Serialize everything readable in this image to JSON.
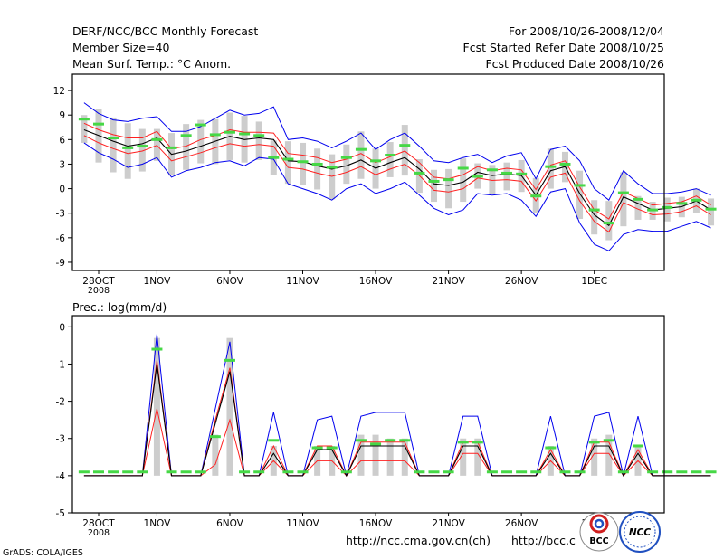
{
  "header": {
    "title": "DERF/NCC/BCC Monthly Forecast",
    "member_size": "Member Size=40",
    "variable": "Mean Surf. Temp.: °C Anom.",
    "period": "For 2008/10/26-2008/12/04",
    "refer_date": "Fcst Started Refer Date 2008/10/25",
    "produced_date": "Fcst Produced Date 2008/10/26"
  },
  "footer": {
    "grads": "GrADS: COLA/IGES",
    "url1": "http://ncc.cma.gov.cn(ch)",
    "url2": "http://bcc.c",
    "logo_bcc": "BCC",
    "logo_ncc": "NCC"
  },
  "colors": {
    "bar": "#cdcdcd",
    "median": "#000000",
    "sd": "#ff2020",
    "envelope": "#0000ee",
    "marker": "#46d846"
  },
  "chart_data": [
    {
      "type": "line",
      "title": "Mean Surf. Temp.: °C Anom.",
      "x_ticks": [
        "28OCT",
        "1NOV",
        "6NOV",
        "11NOV",
        "16NOV",
        "21NOV",
        "26NOV",
        "1DEC"
      ],
      "x_tick_days": [
        2,
        6,
        11,
        16,
        21,
        26,
        31,
        36
      ],
      "x_sublabel": "2008",
      "ylim": [
        -10,
        14
      ],
      "y_ticks": [
        12,
        9,
        6,
        3,
        0,
        -3,
        -6,
        -9
      ],
      "series": [
        {
          "name": "median",
          "values": [
            7.2,
            6.5,
            5.8,
            5.2,
            5.5,
            6.2,
            4.2,
            4.6,
            5.2,
            5.8,
            6.4,
            6.0,
            6.2,
            6.0,
            3.4,
            3.3,
            2.8,
            2.4,
            2.8,
            3.5,
            2.5,
            3.2,
            3.8,
            2.4,
            0.6,
            0.4,
            0.8,
            2.0,
            1.6,
            1.8,
            1.6,
            -0.8,
            2.2,
            2.7,
            -0.6,
            -3.2,
            -4.5,
            -1.0,
            -1.8,
            -2.6,
            -2.4,
            -2.2,
            -1.5,
            -2.6
          ]
        },
        {
          "name": "max",
          "values": [
            10.5,
            9.2,
            8.4,
            8.2,
            8.6,
            8.8,
            7.0,
            7.0,
            7.6,
            8.6,
            9.6,
            9.0,
            9.2,
            10.0,
            6.0,
            6.2,
            5.8,
            5.0,
            5.8,
            6.8,
            4.8,
            6.0,
            6.8,
            5.2,
            3.4,
            3.2,
            3.8,
            4.2,
            3.2,
            4.0,
            4.4,
            1.2,
            4.8,
            5.2,
            3.4,
            0.0,
            -1.4,
            2.2,
            0.6,
            -0.6,
            -0.6,
            -0.4,
            0.0,
            -0.8
          ]
        },
        {
          "name": "min",
          "values": [
            5.6,
            4.4,
            3.6,
            2.6,
            3.0,
            3.8,
            1.4,
            2.2,
            2.6,
            3.2,
            3.4,
            2.8,
            3.8,
            3.6,
            0.6,
            0.0,
            -0.6,
            -1.4,
            0.0,
            0.6,
            -0.6,
            0.0,
            0.8,
            -0.8,
            -2.4,
            -3.2,
            -2.6,
            -0.6,
            -0.8,
            -0.6,
            -1.4,
            -3.4,
            -0.4,
            0.0,
            -4.2,
            -6.8,
            -7.6,
            -5.6,
            -5.0,
            -5.2,
            -5.2,
            -4.6,
            -4.0,
            -4.8
          ]
        },
        {
          "name": "upper_sd",
          "values": [
            8.0,
            7.2,
            6.6,
            6.2,
            6.2,
            7.0,
            4.9,
            5.2,
            6.0,
            6.5,
            7.2,
            6.9,
            6.9,
            6.8,
            4.3,
            4.1,
            3.8,
            3.2,
            3.6,
            4.3,
            3.2,
            3.9,
            4.6,
            3.2,
            1.4,
            1.2,
            1.7,
            2.7,
            2.2,
            2.5,
            2.3,
            -0.1,
            2.9,
            3.4,
            0.2,
            -2.6,
            -3.7,
            -0.4,
            -1.2,
            -2.0,
            -1.8,
            -1.6,
            -0.9,
            -2.0
          ]
        },
        {
          "name": "lower_sd",
          "values": [
            6.5,
            5.6,
            4.9,
            4.3,
            4.6,
            5.3,
            3.4,
            3.9,
            4.4,
            5.0,
            5.5,
            5.2,
            5.4,
            5.2,
            2.6,
            2.4,
            1.9,
            1.5,
            2.0,
            2.7,
            1.7,
            2.4,
            3.0,
            1.6,
            -0.2,
            -0.4,
            0.0,
            1.3,
            1.0,
            1.1,
            0.9,
            -1.5,
            1.4,
            1.9,
            -1.5,
            -4.0,
            -5.3,
            -1.7,
            -2.5,
            -3.2,
            -3.1,
            -2.8,
            -2.1,
            -3.2
          ]
        },
        {
          "name": "obs_marker",
          "values": [
            8.5,
            7.9,
            6.2,
            5.0,
            5.2,
            6.0,
            5.0,
            6.5,
            7.8,
            6.6,
            6.9,
            6.7,
            6.5,
            3.8,
            3.6,
            3.3,
            3.0,
            2.6,
            3.8,
            4.8,
            3.4,
            4.1,
            5.3,
            1.9,
            0.9,
            1.1,
            2.5,
            1.5,
            2.3,
            1.9,
            1.8,
            -0.9,
            2.7,
            3.0,
            0.4,
            -2.6,
            -4.2,
            -0.5,
            -1.3,
            -2.6,
            -2.3,
            -1.8,
            -1.4,
            -2.5
          ]
        },
        {
          "name": "bar_top",
          "values": [
            9.0,
            9.7,
            8.7,
            8.0,
            7.3,
            7.3,
            6.8,
            7.9,
            8.4,
            8.5,
            9.3,
            8.9,
            8.2,
            5.9,
            5.8,
            5.6,
            4.9,
            4.2,
            5.4,
            7.0,
            4.9,
            5.7,
            7.8,
            3.6,
            2.3,
            2.4,
            3.7,
            3.1,
            2.9,
            3.2,
            3.5,
            1.3,
            4.9,
            4.5,
            2.2,
            -1.4,
            -1.5,
            2.0,
            -0.9,
            -1.6,
            -1.1,
            -1.0,
            0.0,
            -1.2
          ]
        },
        {
          "name": "bar_bottom",
          "values": [
            5.6,
            3.2,
            2.0,
            1.2,
            2.1,
            3.4,
            1.6,
            2.3,
            3.1,
            3.0,
            3.5,
            3.2,
            3.5,
            1.7,
            0.6,
            0.4,
            -0.1,
            -1.3,
            0.6,
            1.2,
            0.0,
            1.4,
            1.6,
            -0.5,
            -1.6,
            -2.4,
            -1.6,
            0.0,
            -0.7,
            -0.2,
            -0.4,
            -3.0,
            0.0,
            0.8,
            -3.7,
            -5.6,
            -6.3,
            -4.6,
            -3.8,
            -3.8,
            -4.0,
            -3.5,
            -3.0,
            -4.5
          ]
        }
      ]
    },
    {
      "type": "line",
      "title": "Prec.: log(mm/d)",
      "x_ticks": [
        "28OCT",
        "1NOV",
        "6NOV",
        "11NOV",
        "16NOV",
        "21NOV",
        "26NOV",
        "1DEC"
      ],
      "x_tick_days": [
        2,
        6,
        11,
        16,
        21,
        26,
        31,
        36
      ],
      "x_sublabel": "2008",
      "ylim": [
        -5,
        0.3
      ],
      "y_ticks": [
        0,
        -1,
        -2,
        -3,
        -4,
        -5
      ],
      "series": [
        {
          "name": "median",
          "values": [
            -4,
            -4,
            -4,
            -4,
            -4,
            -1.0,
            -4,
            -4,
            -4,
            -2.6,
            -1.2,
            -4,
            -4,
            -3.4,
            -4,
            -4,
            -3.3,
            -3.3,
            -4,
            -3.2,
            -3.2,
            -3.2,
            -3.2,
            -4,
            -4,
            -4,
            -3.2,
            -3.2,
            -4,
            -4,
            -4,
            -4,
            -3.4,
            -4,
            -4,
            -3.2,
            -3.2,
            -4,
            -3.4,
            -4,
            -4,
            -4,
            -4,
            -4
          ]
        },
        {
          "name": "max",
          "values": [
            -4,
            -4,
            -4,
            -4,
            -4,
            -0.2,
            -4,
            -4,
            -4,
            -2.2,
            -0.4,
            -4,
            -4,
            -2.3,
            -4,
            -4,
            -2.5,
            -2.4,
            -4,
            -2.4,
            -2.3,
            -2.3,
            -2.3,
            -4,
            -4,
            -4,
            -2.4,
            -2.4,
            -4,
            -4,
            -4,
            -4,
            -2.4,
            -4,
            -4,
            -2.4,
            -2.3,
            -4,
            -2.4,
            -4,
            -4,
            -4,
            -4,
            -4
          ]
        },
        {
          "name": "upper_sd",
          "values": [
            -4,
            -4,
            -4,
            -4,
            -4,
            -0.9,
            -4,
            -4,
            -4,
            -2.5,
            -1.1,
            -4,
            -4,
            -3.2,
            -4,
            -4,
            -3.2,
            -3.2,
            -4,
            -3.1,
            -3.1,
            -3.1,
            -3.1,
            -4,
            -4,
            -4,
            -3.1,
            -3.1,
            -4,
            -4,
            -4,
            -4,
            -3.3,
            -4,
            -4,
            -3.1,
            -3.1,
            -4,
            -3.3,
            -4,
            -4,
            -4,
            -4,
            -4
          ]
        },
        {
          "name": "lower_sd",
          "values": [
            -4,
            -4,
            -4,
            -4,
            -4,
            -2.2,
            -4,
            -4,
            -4,
            -3.7,
            -2.5,
            -4,
            -4,
            -3.6,
            -4,
            -4,
            -3.6,
            -3.6,
            -4,
            -3.6,
            -3.6,
            -3.6,
            -3.6,
            -4,
            -4,
            -4,
            -3.4,
            -3.4,
            -4,
            -4,
            -4,
            -4,
            -3.6,
            -4,
            -4,
            -3.4,
            -3.4,
            -4,
            -3.6,
            -4,
            -4,
            -4,
            -4,
            -4
          ]
        },
        {
          "name": "obs_marker",
          "values": [
            -3.9,
            -3.9,
            -3.9,
            -3.9,
            -3.9,
            -0.6,
            -3.9,
            -3.9,
            -3.9,
            -2.95,
            -0.9,
            -3.9,
            -3.9,
            -3.05,
            -3.9,
            -3.9,
            -3.25,
            -3.25,
            -3.9,
            -3.05,
            -3.15,
            -3.05,
            -3.05,
            -3.9,
            -3.9,
            -3.9,
            -3.1,
            -3.1,
            -3.9,
            -3.9,
            -3.9,
            -3.9,
            -3.25,
            -3.9,
            -3.9,
            -3.1,
            -3.05,
            -3.9,
            -3.2,
            -3.9,
            -3.9,
            -3.9,
            -3.9,
            -3.9
          ]
        },
        {
          "name": "bar_top",
          "values": [
            -4,
            -4,
            -4,
            -4,
            -4,
            -0.3,
            -4,
            -4,
            -4,
            -2.9,
            -0.3,
            -4,
            -4,
            -3.2,
            -4,
            -4,
            -3.2,
            -3.2,
            -4,
            -2.9,
            -2.9,
            -3.0,
            -3.0,
            -4,
            -4,
            -4,
            -3.0,
            -3.0,
            -4,
            -4,
            -4,
            -4,
            -3.2,
            -4,
            -4,
            -3.0,
            -2.9,
            -4,
            -3.2,
            -4,
            -4,
            -4,
            -4,
            -4
          ]
        },
        {
          "name": "bar_bottom",
          "values": [
            -4,
            -4,
            -4,
            -4,
            -4,
            -4,
            -4,
            -4,
            -4,
            -4,
            -4,
            -4,
            -4,
            -4,
            -4,
            -4,
            -4,
            -4,
            -4,
            -4,
            -4,
            -4,
            -4,
            -4,
            -4,
            -4,
            -4,
            -4,
            -4,
            -4,
            -4,
            -4,
            -4,
            -4,
            -4,
            -4,
            -4,
            -4,
            -4,
            -4,
            -4,
            -4,
            -4,
            -4
          ]
        }
      ]
    }
  ]
}
